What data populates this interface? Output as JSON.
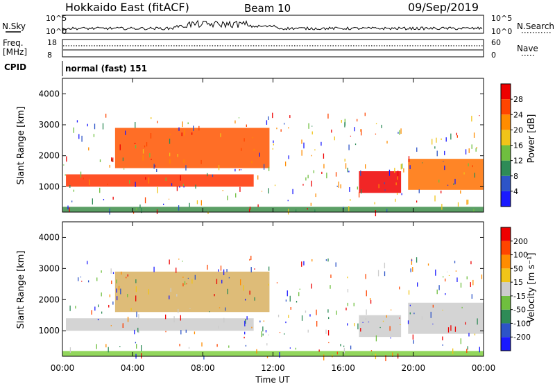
{
  "header": {
    "station": "Hokkaido East (fitACF)",
    "beam": "Beam 10",
    "date": "09/Sep/2019"
  },
  "noise_panel": {
    "left_label": "N.Sky",
    "right_label": "N.Search",
    "left_ticks": [
      "10^5",
      "10^0"
    ],
    "right_ticks": [
      "10^5",
      "10^0"
    ]
  },
  "freq_panel": {
    "left_label_1": "Freq.",
    "left_label_2": "[MHz]",
    "right_label": "Nave",
    "left_ticks": [
      "18",
      "8"
    ],
    "right_ticks": [
      "60",
      "0"
    ]
  },
  "cpid_panel": {
    "label": "CPID",
    "text": "normal (fast) 151"
  },
  "x_axis": {
    "label": "Time UT",
    "ticks": [
      "00:00",
      "04:00",
      "08:00",
      "12:00",
      "16:00",
      "20:00",
      "00:00"
    ]
  },
  "chart_data": [
    {
      "type": "heatmap",
      "name": "Power",
      "ylabel": "Slant Range [km]",
      "ylim": [
        180,
        4500
      ],
      "y_ticks": [
        1000,
        2000,
        3000,
        4000
      ],
      "xlim_hours": [
        0,
        24
      ],
      "colorbar": {
        "label": "Power [dB]",
        "ticks": [
          "4",
          "8",
          "12",
          "16",
          "20",
          "24",
          "28"
        ],
        "colors": [
          "#1a1aff",
          "#2d54c8",
          "#2e8b57",
          "#6fbf3f",
          "#f0c419",
          "#ff8c00",
          "#ff4500",
          "#ee0000"
        ]
      },
      "regions": [
        {
          "t0": 0.2,
          "t1": 10.9,
          "r0": 1000,
          "r1": 1400,
          "color": "#ff3300"
        },
        {
          "t0": 3.0,
          "t1": 11.8,
          "r0": 1600,
          "r1": 2900,
          "color": "#ff5500"
        },
        {
          "t0": 16.9,
          "t1": 19.3,
          "r0": 800,
          "r1": 1500,
          "color": "#ee0000"
        },
        {
          "t0": 19.7,
          "t1": 24.0,
          "r0": 900,
          "r1": 1900,
          "color": "#ff7000"
        },
        {
          "t0": 0.0,
          "t1": 24.0,
          "r0": 180,
          "r1": 350,
          "color": "#3e8e4a"
        }
      ]
    },
    {
      "type": "heatmap",
      "name": "Velocity",
      "ylabel": "Slant Range [km]",
      "ylim": [
        180,
        4500
      ],
      "y_ticks": [
        1000,
        2000,
        3000,
        4000
      ],
      "xlim_hours": [
        0,
        24
      ],
      "colorbar": {
        "label": "Velocity [m s⁻¹]",
        "ticks": [
          "200",
          "100",
          "50",
          "15",
          "-15",
          "-50",
          "-100",
          "-200"
        ],
        "colors": [
          "#1a1aff",
          "#2d54c8",
          "#2e8b57",
          "#6fbf3f",
          "#cccccc",
          "#f0c419",
          "#ff8c00",
          "#ff4500",
          "#ee0000"
        ]
      },
      "regions": [
        {
          "t0": 0.2,
          "t1": 10.9,
          "r0": 1000,
          "r1": 1400,
          "color": "#cccccc"
        },
        {
          "t0": 3.0,
          "t1": 11.8,
          "r0": 1600,
          "r1": 2900,
          "color": "#d8b060"
        },
        {
          "t0": 16.9,
          "t1": 19.3,
          "r0": 800,
          "r1": 1500,
          "color": "#cccccc"
        },
        {
          "t0": 19.7,
          "t1": 24.0,
          "r0": 900,
          "r1": 1900,
          "color": "#cccccc"
        },
        {
          "t0": 0.0,
          "t1": 24.0,
          "r0": 180,
          "r1": 350,
          "color": "#7fcf3f"
        }
      ]
    }
  ]
}
